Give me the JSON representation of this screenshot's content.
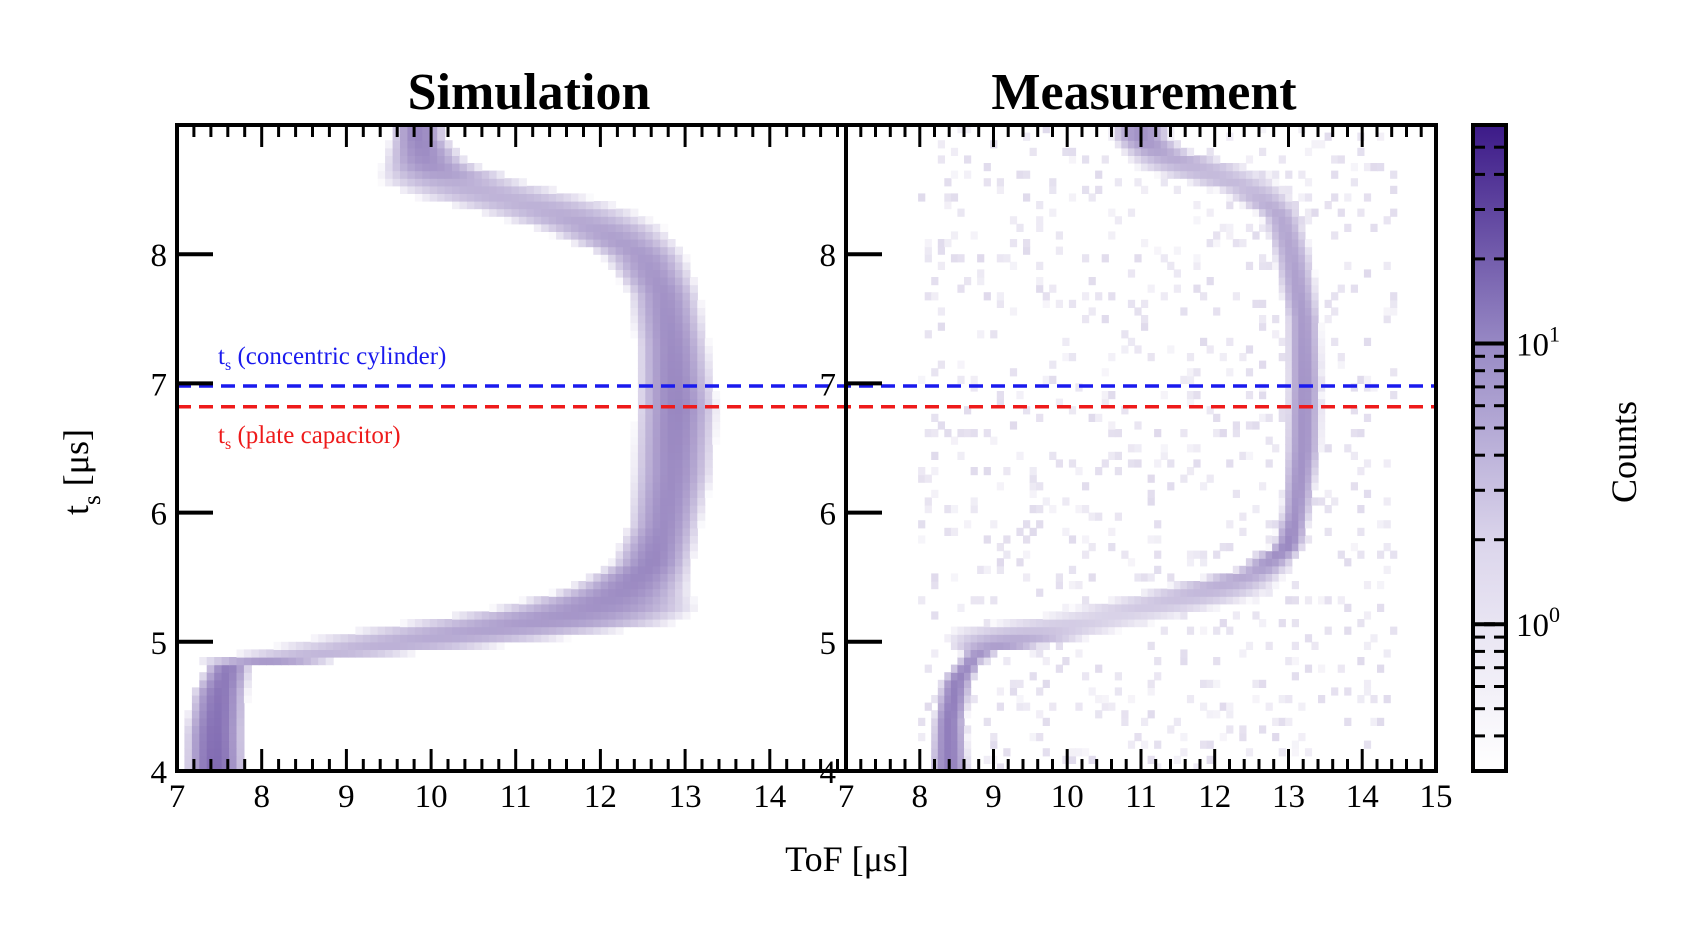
{
  "chart_data": {
    "type": "heatmap",
    "colormap": {
      "low": "#ffffff",
      "high": "#3c1a88"
    },
    "x_axis": {
      "label": "ToF [μs]",
      "unit": "μs"
    },
    "y_axis": {
      "label": "t",
      "label_sub": "s",
      "label_suffix": " [μs]",
      "unit": "μs"
    },
    "colorbar": {
      "label": "Counts",
      "scale": "log",
      "range": [
        0.3,
        60
      ],
      "ticks": [
        {
          "value": 1,
          "label": "10",
          "exp": "0"
        },
        {
          "value": 10,
          "label": "10",
          "exp": "1"
        }
      ]
    },
    "reference_lines": [
      {
        "name": "concentric",
        "y": 6.98,
        "color": "#1a1aee",
        "label": "t",
        "label_sub": "s",
        "label_suffix": " (concentric cylinder)"
      },
      {
        "name": "plate",
        "y": 6.82,
        "color": "#ee1a1a",
        "label": "t",
        "label_sub": "s",
        "label_suffix": " (plate capacitor)"
      }
    ],
    "panels": [
      {
        "id": "simulation",
        "title": "Simulation",
        "xlim": [
          7,
          14.9
        ],
        "ylim": [
          4,
          9
        ],
        "x_ticks": [
          "7",
          "8",
          "9",
          "10",
          "11",
          "12",
          "13",
          "14"
        ],
        "y_ticks": [
          "4",
          "5",
          "6",
          "7",
          "8"
        ],
        "trace": [
          [
            4.0,
            7.45,
            0.15,
            8
          ],
          [
            4.3,
            7.45,
            0.15,
            7
          ],
          [
            4.6,
            7.5,
            0.14,
            6
          ],
          [
            4.8,
            7.6,
            0.12,
            5
          ],
          [
            4.88,
            8.3,
            0.55,
            1.2
          ],
          [
            4.95,
            9.3,
            0.75,
            1.4
          ],
          [
            5.05,
            10.3,
            0.85,
            1.8
          ],
          [
            5.15,
            11.3,
            0.8,
            2.5
          ],
          [
            5.25,
            11.9,
            0.6,
            3
          ],
          [
            5.4,
            12.3,
            0.35,
            3.5
          ],
          [
            5.6,
            12.6,
            0.22,
            4
          ],
          [
            5.9,
            12.75,
            0.2,
            3.5
          ],
          [
            6.3,
            12.85,
            0.22,
            3.5
          ],
          [
            6.8,
            12.9,
            0.22,
            4
          ],
          [
            7.3,
            12.85,
            0.2,
            3.5
          ],
          [
            7.7,
            12.75,
            0.2,
            3
          ],
          [
            8.0,
            12.5,
            0.25,
            2.5
          ],
          [
            8.2,
            12.0,
            0.4,
            2
          ],
          [
            8.35,
            11.4,
            0.55,
            1.5
          ],
          [
            8.45,
            10.8,
            0.6,
            1.4
          ],
          [
            8.55,
            10.3,
            0.5,
            1.5
          ],
          [
            8.7,
            9.95,
            0.25,
            3
          ],
          [
            8.9,
            9.85,
            0.15,
            4
          ]
        ]
      },
      {
        "id": "measurement",
        "title": "Measurement",
        "xlim": [
          7,
          15
        ],
        "ylim": [
          4,
          9
        ],
        "x_ticks": [
          "7",
          "8",
          "9",
          "10",
          "11",
          "12",
          "13",
          "14",
          "15"
        ],
        "y_ticks": [
          "4",
          "5",
          "6",
          "7",
          "8"
        ],
        "trace": [
          [
            4.0,
            8.4,
            0.12,
            5
          ],
          [
            4.4,
            8.4,
            0.1,
            5
          ],
          [
            4.7,
            8.5,
            0.1,
            4.5
          ],
          [
            4.9,
            8.75,
            0.08,
            3
          ],
          [
            5.1,
            9.6,
            0.8,
            0.9
          ],
          [
            5.2,
            10.6,
            0.8,
            0.7
          ],
          [
            5.35,
            11.7,
            0.6,
            1.1
          ],
          [
            5.55,
            12.6,
            0.2,
            2
          ],
          [
            5.75,
            13.0,
            0.1,
            4
          ],
          [
            6.0,
            13.1,
            0.1,
            3
          ],
          [
            6.5,
            13.2,
            0.12,
            3
          ],
          [
            7.0,
            13.22,
            0.12,
            3
          ],
          [
            7.5,
            13.2,
            0.12,
            2.5
          ],
          [
            8.0,
            13.05,
            0.14,
            2
          ],
          [
            8.3,
            12.9,
            0.15,
            1.8
          ],
          [
            8.5,
            12.5,
            0.3,
            1.2
          ],
          [
            8.65,
            11.8,
            0.5,
            1.2
          ],
          [
            8.8,
            11.2,
            0.25,
            2
          ],
          [
            8.9,
            11.0,
            0.2,
            3
          ]
        ]
      }
    ]
  }
}
